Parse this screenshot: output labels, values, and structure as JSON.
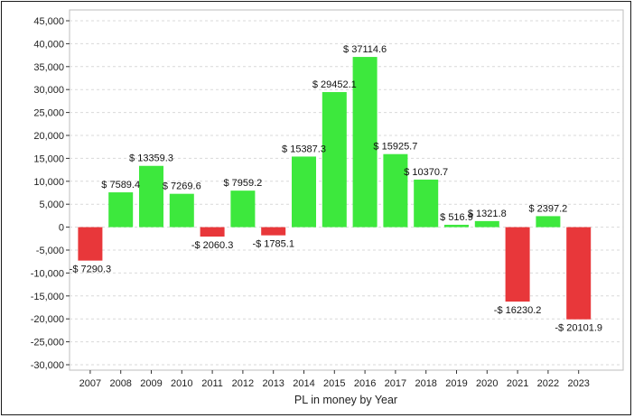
{
  "chart_data": {
    "type": "bar",
    "title": "",
    "xlabel": "PL in money by Year",
    "ylabel": "",
    "ylim": [
      -30000,
      45000
    ],
    "y_ticks": [
      45000,
      40000,
      35000,
      30000,
      25000,
      20000,
      15000,
      10000,
      5000,
      0,
      -5000,
      -10000,
      -15000,
      -20000,
      -25000,
      -30000
    ],
    "y_tick_labels": [
      "45,000",
      "40,000",
      "35,000",
      "30,000",
      "25,000",
      "20,000",
      "15,000",
      "10,000",
      "5,000",
      "0",
      "-5,000",
      "-10,000",
      "-15,000",
      "-20,000",
      "-25,000",
      "-30,000"
    ],
    "categories": [
      "2007",
      "2008",
      "2009",
      "2010",
      "2011",
      "2012",
      "2013",
      "2014",
      "2015",
      "2016",
      "2017",
      "2018",
      "2019",
      "2020",
      "2021",
      "2022",
      "2023"
    ],
    "values": [
      -7290.3,
      7589.4,
      13359.3,
      7269.6,
      -2060.3,
      7959.2,
      -1785.1,
      15387.3,
      29452.1,
      37114.6,
      15925.7,
      10370.7,
      516.9,
      1321.8,
      -16230.2,
      2397.2,
      -20101.9
    ],
    "data_labels": [
      "-$ 7290.3",
      "$ 7589.4",
      "$ 13359.3",
      "$ 7269.6",
      "-$ 2060.3",
      "$ 7959.2",
      "-$ 1785.1",
      "$ 15387.3",
      "$ 29452.1",
      "$ 37114.6",
      "$ 15925.7",
      "$ 10370.7",
      "$ 516.9",
      "$ 1321.8",
      "-$ 16230.2",
      "$ 2397.2",
      "-$ 20101.9"
    ],
    "grid": "horizontal dashed",
    "legend": "none",
    "colors": {
      "positive": "#3de83d",
      "negative": "#e8373a",
      "grid": "#d9d9d9",
      "axis": "#333333"
    }
  }
}
